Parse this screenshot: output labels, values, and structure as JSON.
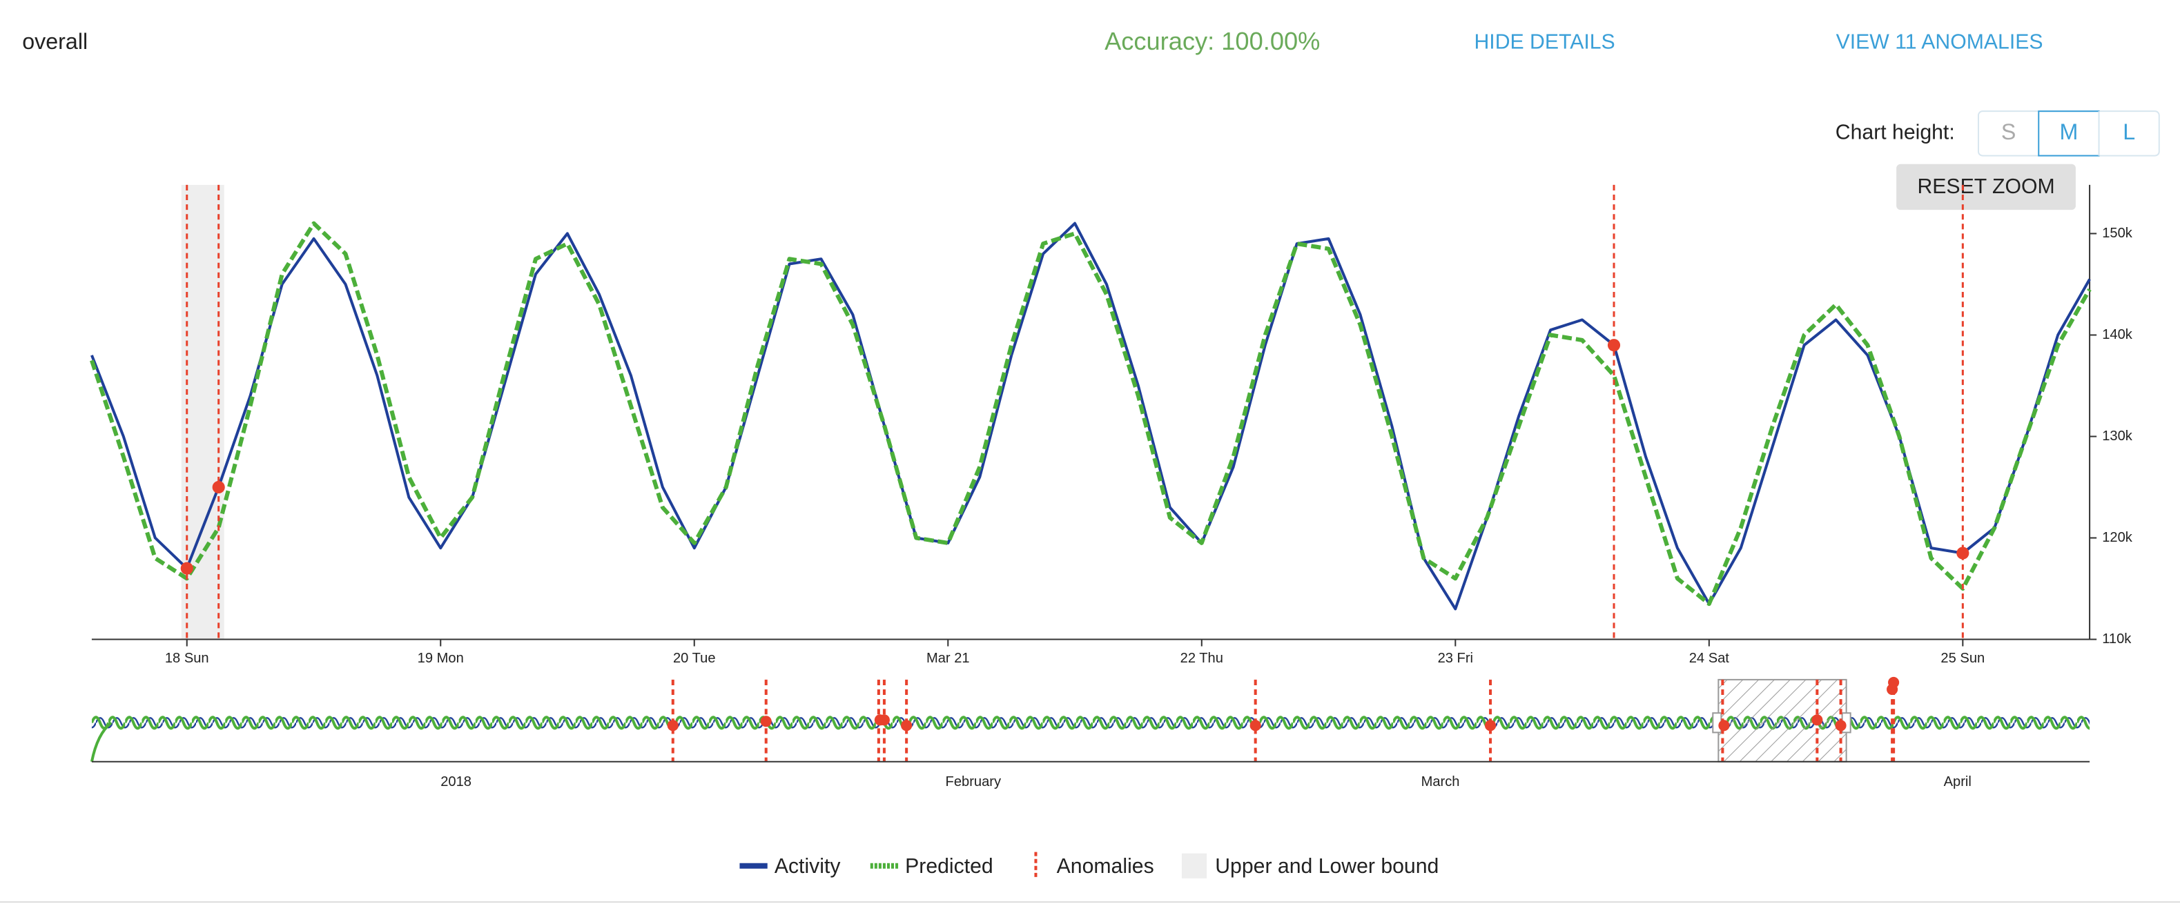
{
  "header": {
    "title": "overall",
    "accuracy": "Accuracy: 100.00%",
    "hide_details": "HIDE DETAILS",
    "view_anomalies": "VIEW 11 ANOMALIES"
  },
  "controls": {
    "chart_height_label": "Chart height:",
    "sizes": [
      "S",
      "M",
      "L"
    ],
    "selected": "M",
    "reset_zoom": "RESET ZOOM"
  },
  "chart_data": {
    "type": "line",
    "categories": [
      null,
      null,
      null,
      "18 Sun",
      null,
      null,
      null,
      null,
      null,
      null,
      null,
      "19 Mon",
      null,
      null,
      null,
      null,
      null,
      null,
      null,
      "20 Tue",
      null,
      null,
      null,
      null,
      null,
      null,
      null,
      "Mar 21",
      null,
      null,
      null,
      null,
      null,
      null,
      null,
      "22 Thu",
      null,
      null,
      null,
      null,
      null,
      null,
      null,
      "23 Fri",
      null,
      null,
      null,
      null,
      null,
      null,
      null,
      "24 Sat",
      null,
      null,
      null,
      null,
      null,
      null,
      null,
      "25 Sun",
      null,
      null,
      null,
      null
    ],
    "series": [
      {
        "name": "Activity",
        "color": "#1f3f99",
        "style": "solid",
        "values": [
          138000,
          130000,
          120000,
          117000,
          125000,
          134000,
          145000,
          149500,
          145000,
          136000,
          124000,
          119000,
          124000,
          135000,
          146000,
          150000,
          144000,
          136000,
          125000,
          119000,
          125000,
          136000,
          147000,
          147500,
          142000,
          131000,
          120000,
          119500,
          126000,
          138000,
          148000,
          151000,
          145000,
          135000,
          123000,
          119500,
          127000,
          139000,
          149000,
          149500,
          142000,
          131000,
          118000,
          113000,
          122000,
          132000,
          140500,
          141500,
          139000,
          128000,
          119000,
          113500,
          119000,
          129000,
          139000,
          141500,
          138000,
          130000,
          119000,
          118500,
          121000,
          130000,
          140000,
          145500
        ]
      },
      {
        "name": "Predicted",
        "color": "#4caf3a",
        "style": "dashed",
        "values": [
          137500,
          128000,
          118000,
          116000,
          121000,
          133000,
          146000,
          151000,
          148000,
          138000,
          126000,
          120000,
          124000,
          136000,
          147500,
          149000,
          143000,
          133000,
          123000,
          119500,
          125000,
          137000,
          147500,
          147000,
          141000,
          131000,
          120000,
          119500,
          127000,
          139000,
          149000,
          150000,
          144000,
          134000,
          122000,
          119500,
          128000,
          140000,
          149000,
          148500,
          141000,
          130000,
          118000,
          116000,
          122000,
          131000,
          140000,
          139500,
          136000,
          126000,
          116000,
          113500,
          121000,
          131000,
          140000,
          143000,
          139000,
          130000,
          118000,
          115000,
          121000,
          130000,
          139000,
          144500
        ]
      },
      {
        "name": "Anomalies",
        "color": "#e8412c",
        "style": "marker",
        "values": [
          null,
          null,
          null,
          117000,
          125000,
          null,
          null,
          null,
          null,
          null,
          null,
          null,
          null,
          null,
          null,
          null,
          null,
          null,
          null,
          null,
          null,
          null,
          null,
          null,
          null,
          null,
          null,
          null,
          null,
          null,
          null,
          null,
          null,
          null,
          null,
          null,
          null,
          null,
          null,
          null,
          null,
          null,
          null,
          null,
          null,
          null,
          null,
          null,
          139000,
          null,
          null,
          null,
          null,
          null,
          null,
          null,
          null,
          null,
          null,
          118500,
          null,
          null,
          null,
          null
        ]
      }
    ],
    "bounds": {
      "name": "Upper and Lower bound",
      "color": "#eeeeee"
    },
    "ylim": [
      110000,
      154800
    ],
    "yticks": [
      {
        "value": 110000,
        "label": "110k"
      },
      {
        "value": 120000,
        "label": "120k"
      },
      {
        "value": 130000,
        "label": "130k"
      },
      {
        "value": 140000,
        "label": "140k"
      },
      {
        "value": 150000,
        "label": "150k"
      }
    ],
    "navigator_labels": [
      "2018",
      "February",
      "March",
      "April"
    ]
  }
}
